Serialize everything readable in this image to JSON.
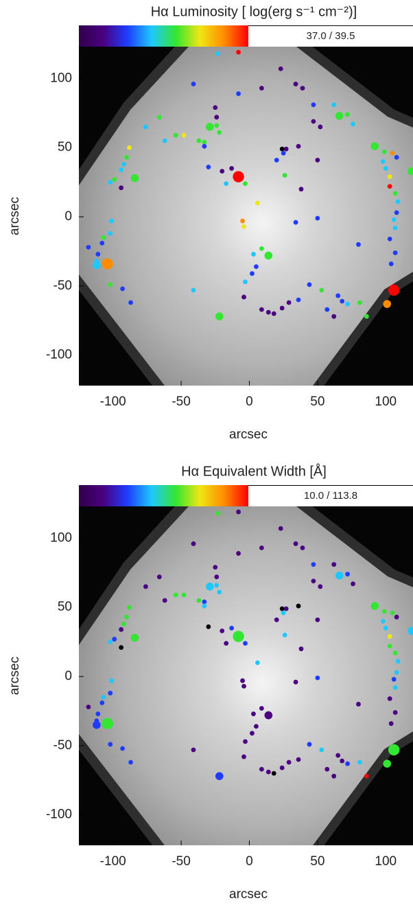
{
  "chart_data": [
    {
      "type": "scatter",
      "title": "Hα Luminosity [ log(erg s⁻¹ cm⁻²)]",
      "colorbar_colors": [
        "#30004a",
        "#4a0080",
        "#1e3cff",
        "#1ec8ff",
        "#32e632",
        "#f0e614",
        "#ff8c00",
        "#ff0000"
      ],
      "colorbar_label": "37.0 / 39.5",
      "xlabel": "arcsec",
      "ylabel": "arcsec",
      "xlim": [
        -125,
        120
      ],
      "ylim": [
        -122,
        123
      ],
      "xticks": [
        -100,
        -50,
        0,
        50,
        100
      ],
      "yticks": [
        -100,
        -50,
        0,
        50,
        100
      ],
      "x": [
        -23,
        -8,
        -41,
        23,
        9,
        -8,
        34,
        39,
        47,
        62,
        66,
        72,
        76,
        -25,
        -24,
        -66,
        -76,
        -29,
        -24,
        -22,
        -54,
        -48,
        -62,
        -37,
        -33,
        -33,
        47,
        52,
        36,
        27,
        24,
        25,
        20,
        -88,
        -90,
        -92,
        -94,
        -102,
        -99,
        -94,
        -84,
        -30,
        -20,
        -13,
        -8,
        -17,
        -3,
        26,
        38,
        50,
        92,
        99,
        105,
        108,
        119,
        98,
        100,
        103,
        103,
        107,
        109,
        108,
        106,
        107,
        103,
        107,
        6,
        -5,
        -4,
        34,
        50,
        9,
        14,
        3,
        5,
        2,
        -3,
        -4,
        80,
        104,
        -101,
        -102,
        -107,
        -108,
        -118,
        -111,
        -112,
        -112,
        -104,
        -102,
        -93,
        -87,
        -41,
        -22,
        9,
        14,
        18,
        24,
        29,
        36,
        44,
        53,
        65,
        68,
        72,
        81,
        86,
        106,
        101,
        62,
        57
      ],
      "y": [
        118,
        119,
        96,
        107,
        93,
        89,
        96,
        93,
        81,
        81,
        73,
        74,
        67,
        79,
        72,
        72,
        65,
        65,
        66,
        61,
        59,
        59,
        55,
        55,
        54,
        51,
        69,
        65,
        51,
        49,
        49,
        46,
        41,
        50,
        43,
        38,
        34,
        25,
        27,
        21,
        28,
        36,
        33,
        35,
        29,
        24,
        24,
        30,
        20,
        41,
        51,
        47,
        46,
        43,
        33,
        40,
        35,
        29,
        22,
        17,
        11,
        3,
        -2,
        -8,
        -16,
        -26,
        10,
        -3,
        -7,
        -4,
        -1,
        -23,
        -28,
        -27,
        -36,
        -41,
        -47,
        -58,
        -20,
        -34,
        -3,
        -12,
        -15,
        -19,
        -22,
        -27,
        -32,
        -35,
        -34,
        -49,
        -52,
        -62,
        -53,
        -72,
        -67,
        -69,
        -70,
        -66,
        -62,
        -60,
        -49,
        -53,
        -57,
        -61,
        -63,
        -62,
        -72,
        -53,
        -63,
        -72,
        -67
      ],
      "sizes": [
        1,
        1,
        1,
        1,
        1,
        1,
        1,
        1,
        1,
        1,
        2,
        1,
        1,
        1,
        1,
        1,
        1,
        2,
        1,
        1,
        1,
        1,
        1,
        1,
        1,
        1,
        1,
        1,
        1,
        1,
        1,
        1,
        1,
        1,
        1,
        1,
        1,
        1,
        1,
        1,
        2,
        1,
        1,
        1,
        3,
        1,
        1,
        1,
        1,
        1,
        2,
        1,
        1,
        1,
        2,
        1,
        1,
        1,
        1,
        1,
        1,
        1,
        1,
        1,
        1,
        1,
        1,
        1,
        1,
        1,
        1,
        1,
        2,
        1,
        1,
        1,
        1,
        1,
        1,
        1,
        1,
        1,
        1,
        1,
        1,
        1,
        1,
        2,
        3,
        1,
        1,
        1,
        1,
        2,
        1,
        1,
        1,
        1,
        1,
        1,
        1,
        1,
        1,
        1,
        1,
        1,
        1,
        3,
        2,
        1,
        1
      ],
      "colors": [
        "#1ec8ff",
        "#ff0000",
        "#1e3cff",
        "#4a0080",
        "#4a0080",
        "#1e3cff",
        "#4a0080",
        "#4a0080",
        "#1e3cff",
        "#1ec8ff",
        "#32e632",
        "#32e632",
        "#1ec8ff",
        "#4a0080",
        "#4a0080",
        "#32e632",
        "#1ec8ff",
        "#32e632",
        "#32e632",
        "#32e632",
        "#32e632",
        "#f0e614",
        "#1ec8ff",
        "#32e632",
        "#32e632",
        "#1e3cff",
        "#4a0080",
        "#4a0080",
        "#4a0080",
        "#4a0080",
        "#000000",
        "#1e3cff",
        "#1e3cff",
        "#f0e614",
        "#32e632",
        "#1ec8ff",
        "#1ec8ff",
        "#1ec8ff",
        "#32e632",
        "#4a0080",
        "#32e632",
        "#1e3cff",
        "#4a0080",
        "#4a0080",
        "#ff0000",
        "#1ec8ff",
        "#32e632",
        "#32e632",
        "#4a0080",
        "#4a0080",
        "#32e632",
        "#32e632",
        "#ff8c00",
        "#1e3cff",
        "#32e632",
        "#1ec8ff",
        "#1ec8ff",
        "#f0e614",
        "#ff0000",
        "#32e632",
        "#1ec8ff",
        "#1e3cff",
        "#1ec8ff",
        "#1ec8ff",
        "#1e3cff",
        "#1e3cff",
        "#f0e614",
        "#ff8c00",
        "#f0e614",
        "#1e3cff",
        "#1e3cff",
        "#32e632",
        "#32e632",
        "#1ec8ff",
        "#1e3cff",
        "#1e3cff",
        "#1ec8ff",
        "#4a0080",
        "#1e3cff",
        "#1e3cff",
        "#1ec8ff",
        "#1ec8ff",
        "#32e632",
        "#1e3cff",
        "#1e3cff",
        "#1e3cff",
        "#1ec8ff",
        "#1ec8ff",
        "#ff8c00",
        "#32e632",
        "#1e3cff",
        "#1e3cff",
        "#1ec8ff",
        "#32e632",
        "#4a0080",
        "#4a0080",
        "#4a0080",
        "#4a0080",
        "#4a0080",
        "#1e3cff",
        "#1e3cff",
        "#32e632",
        "#1e3cff",
        "#1e3cff",
        "#1ec8ff",
        "#32e632",
        "#32e632",
        "#ff0000",
        "#ff8c00",
        "#4a0080",
        "#1e3cff"
      ]
    },
    {
      "type": "scatter",
      "title": "Hα Equivalent Width  [Å]",
      "colorbar_colors": [
        "#30004a",
        "#4a0080",
        "#1e3cff",
        "#1ec8ff",
        "#32e632",
        "#f0e614",
        "#ff8c00",
        "#ff0000"
      ],
      "colorbar_label": "10.0 / 113.8",
      "xlabel": "arcsec",
      "ylabel": "arcsec",
      "xlim": [
        -125,
        120
      ],
      "ylim": [
        -122,
        123
      ],
      "xticks": [
        -100,
        -50,
        0,
        50,
        100
      ],
      "yticks": [
        -100,
        -50,
        0,
        50,
        100
      ],
      "x": [
        -23,
        -8,
        -41,
        23,
        9,
        -8,
        34,
        39,
        47,
        62,
        66,
        72,
        76,
        -25,
        -24,
        -66,
        -76,
        -29,
        -24,
        -22,
        -54,
        -48,
        -62,
        -37,
        -33,
        -33,
        47,
        52,
        36,
        27,
        24,
        25,
        20,
        -88,
        -90,
        -92,
        -94,
        -102,
        -99,
        -94,
        -84,
        -30,
        -20,
        -13,
        -8,
        -17,
        -3,
        26,
        38,
        50,
        92,
        99,
        105,
        108,
        119,
        98,
        100,
        103,
        103,
        107,
        109,
        108,
        106,
        107,
        103,
        107,
        6,
        -5,
        -4,
        34,
        50,
        9,
        14,
        3,
        5,
        2,
        -3,
        -4,
        80,
        104,
        -101,
        -102,
        -107,
        -108,
        -118,
        -111,
        -112,
        -112,
        -104,
        -102,
        -93,
        -87,
        -41,
        -22,
        9,
        14,
        18,
        24,
        29,
        36,
        44,
        53,
        65,
        68,
        72,
        81,
        86,
        106,
        101,
        62,
        57
      ],
      "y": [
        118,
        119,
        96,
        107,
        93,
        89,
        96,
        93,
        81,
        81,
        73,
        74,
        67,
        79,
        72,
        72,
        65,
        65,
        66,
        61,
        59,
        59,
        55,
        55,
        54,
        51,
        69,
        65,
        51,
        49,
        49,
        46,
        41,
        50,
        43,
        38,
        34,
        25,
        27,
        21,
        28,
        36,
        33,
        35,
        29,
        24,
        24,
        30,
        20,
        41,
        51,
        47,
        46,
        43,
        33,
        40,
        35,
        29,
        22,
        17,
        11,
        3,
        -2,
        -8,
        -16,
        -26,
        10,
        -3,
        -7,
        -4,
        -1,
        -23,
        -28,
        -27,
        -36,
        -41,
        -47,
        -58,
        -20,
        -34,
        -3,
        -12,
        -15,
        -19,
        -22,
        -27,
        -32,
        -35,
        -34,
        -49,
        -52,
        -62,
        -53,
        -72,
        -67,
        -69,
        -70,
        -66,
        -62,
        -60,
        -49,
        -53,
        -57,
        -61,
        -63,
        -62,
        -72,
        -53,
        -63,
        -72,
        -67
      ],
      "sizes": [
        1,
        1,
        1,
        1,
        1,
        1,
        1,
        1,
        1,
        1,
        2,
        1,
        1,
        1,
        1,
        1,
        1,
        2,
        1,
        1,
        1,
        1,
        1,
        1,
        1,
        1,
        1,
        1,
        1,
        1,
        1,
        1,
        1,
        1,
        1,
        1,
        1,
        1,
        1,
        1,
        2,
        1,
        1,
        1,
        3,
        1,
        1,
        1,
        1,
        1,
        2,
        1,
        1,
        1,
        2,
        1,
        1,
        1,
        1,
        1,
        1,
        1,
        1,
        1,
        1,
        1,
        1,
        1,
        1,
        1,
        1,
        1,
        2,
        1,
        1,
        1,
        1,
        1,
        1,
        1,
        1,
        1,
        1,
        1,
        1,
        1,
        1,
        2,
        3,
        1,
        1,
        1,
        1,
        2,
        1,
        1,
        1,
        1,
        1,
        1,
        1,
        1,
        1,
        1,
        1,
        1,
        1,
        3,
        2,
        1,
        1
      ],
      "colors": [
        "#32e632",
        "#4a0080",
        "#4a0080",
        "#4a0080",
        "#4a0080",
        "#4a0080",
        "#4a0080",
        "#4a0080",
        "#1e3cff",
        "#4a0080",
        "#1ec8ff",
        "#1e3cff",
        "#4a0080",
        "#4a0080",
        "#4a0080",
        "#4a0080",
        "#4a0080",
        "#1ec8ff",
        "#1ec8ff",
        "#1ec8ff",
        "#32e632",
        "#32e632",
        "#4a0080",
        "#32e632",
        "#1e3cff",
        "#1ec8ff",
        "#4a0080",
        "#4a0080",
        "#000000",
        "#4a0080",
        "#000000",
        "#1ec8ff",
        "#4a0080",
        "#32e632",
        "#32e632",
        "#32e632",
        "#4a0080",
        "#1ec8ff",
        "#1e3cff",
        "#000000",
        "#32e632",
        "#000000",
        "#4a0080",
        "#1e3cff",
        "#32e632",
        "#4a0080",
        "#1e3cff",
        "#1ec8ff",
        "#4a0080",
        "#4a0080",
        "#32e632",
        "#32e632",
        "#32e632",
        "#4a0080",
        "#1ec8ff",
        "#1ec8ff",
        "#1ec8ff",
        "#f0e614",
        "#32e632",
        "#32e632",
        "#1ec8ff",
        "#1ec8ff",
        "#1e3cff",
        "#1ec8ff",
        "#4a0080",
        "#4a0080",
        "#1ec8ff",
        "#4a0080",
        "#4a0080",
        "#4a0080",
        "#1e3cff",
        "#4a0080",
        "#4a0080",
        "#4a0080",
        "#4a0080",
        "#4a0080",
        "#4a0080",
        "#4a0080",
        "#4a0080",
        "#4a0080",
        "#1ec8ff",
        "#1e3cff",
        "#1ec8ff",
        "#1e3cff",
        "#4a0080",
        "#1e3cff",
        "#1e3cff",
        "#1e3cff",
        "#32e632",
        "#1e3cff",
        "#1e3cff",
        "#1e3cff",
        "#4a0080",
        "#1e3cff",
        "#4a0080",
        "#4a0080",
        "#000000",
        "#4a0080",
        "#4a0080",
        "#4a0080",
        "#1e3cff",
        "#1ec8ff",
        "#4a0080",
        "#4a0080",
        "#1e3cff",
        "#1ec8ff",
        "#ff0000",
        "#32e632",
        "#32e632",
        "#4a0080",
        "#4a0080"
      ]
    }
  ]
}
